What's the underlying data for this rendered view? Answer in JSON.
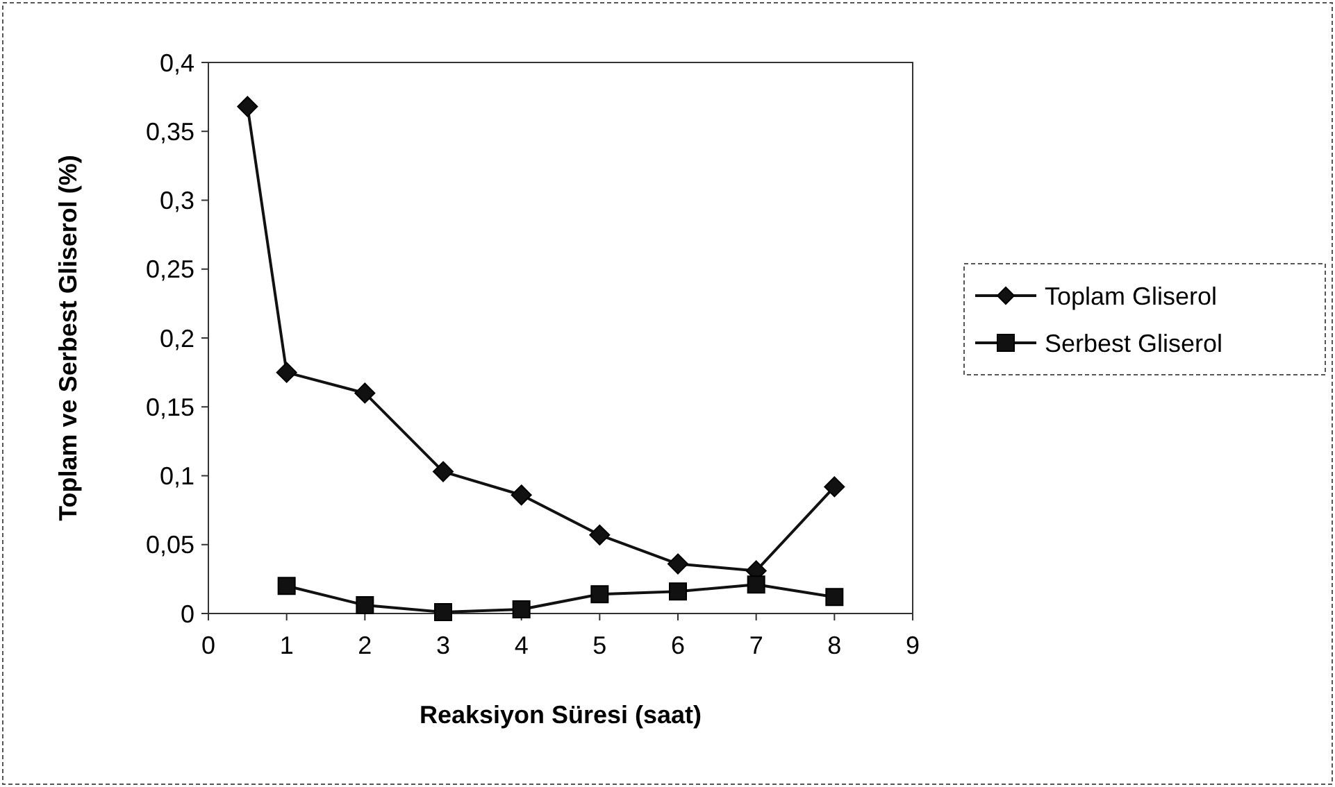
{
  "chart_data": {
    "type": "line",
    "xlabel": "Reaksiyon Süresi (saat)",
    "ylabel": "Toplam ve Serbest Gliserol (%)",
    "xlim": [
      0,
      9
    ],
    "xticks": [
      0,
      1,
      2,
      3,
      4,
      5,
      6,
      7,
      8,
      9
    ],
    "ylim": [
      0,
      0.4
    ],
    "yticks": [
      {
        "value": 0,
        "label": "0"
      },
      {
        "value": 0.05,
        "label": "0,05"
      },
      {
        "value": 0.1,
        "label": "0,1"
      },
      {
        "value": 0.15,
        "label": "0,15"
      },
      {
        "value": 0.2,
        "label": "0,2"
      },
      {
        "value": 0.25,
        "label": "0,25"
      },
      {
        "value": 0.3,
        "label": "0,3"
      },
      {
        "value": 0.35,
        "label": "0,35"
      },
      {
        "value": 0.4,
        "label": "0,4"
      }
    ],
    "legend": "right",
    "grid": false,
    "series": [
      {
        "name": "Toplam Gliserol",
        "color": "#111111",
        "marker": "diamond",
        "x": [
          0.5,
          1,
          2,
          3,
          4,
          5,
          6,
          7,
          8
        ],
        "values": [
          0.368,
          0.175,
          0.16,
          0.103,
          0.086,
          0.057,
          0.036,
          0.031,
          0.092
        ]
      },
      {
        "name": "Serbest Gliserol",
        "color": "#111111",
        "marker": "square",
        "x": [
          1,
          2,
          3,
          4,
          5,
          6,
          7,
          8
        ],
        "values": [
          0.02,
          0.006,
          0.001,
          0.003,
          0.014,
          0.016,
          0.021,
          0.012
        ]
      }
    ]
  }
}
